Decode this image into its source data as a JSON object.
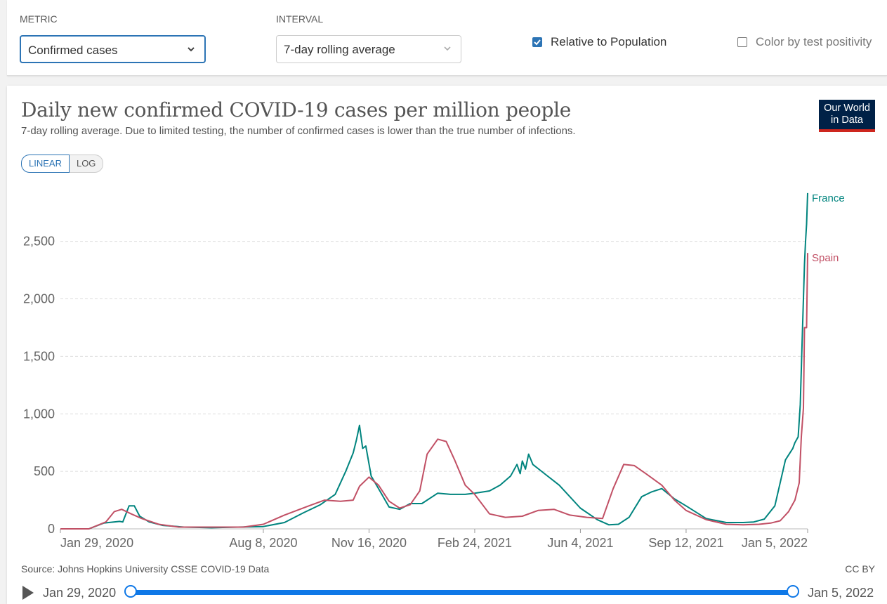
{
  "controls": {
    "metric_label": "METRIC",
    "metric_value": "Confirmed cases",
    "interval_label": "INTERVAL",
    "interval_value": "7-day rolling average",
    "relative_label": "Relative to Population",
    "relative_checked": true,
    "positivity_label": "Color by test positivity",
    "positivity_checked": false
  },
  "title": "Daily new confirmed COVID-19 cases per million people",
  "subtitle": "7-day rolling average. Due to limited testing, the number of confirmed cases is lower than the true number of infections.",
  "logo": {
    "line1": "Our World",
    "line2": "in Data"
  },
  "scale": {
    "linear": "LINEAR",
    "log": "LOG",
    "active": "linear"
  },
  "source": "Source: Johns Hopkins University CSSE COVID-19 Data",
  "license": "CC BY",
  "timeline": {
    "start": "Jan 29, 2020",
    "end": "Jan 5, 2022"
  },
  "colors": {
    "france": "#00847e",
    "spain": "#c15065",
    "accent": "#2c74b5",
    "timeline": "#0f78e7"
  },
  "chart_data": {
    "type": "line",
    "title": "Daily new confirmed COVID-19 cases per million people",
    "xlabel": "",
    "ylabel": "",
    "xlim": [
      "2020-01-29",
      "2022-01-05"
    ],
    "ylim": [
      0,
      2950
    ],
    "y_ticks": [
      0,
      500,
      1000,
      1500,
      2000,
      2500
    ],
    "y_tick_labels": [
      "0",
      "500",
      "1,000",
      "1,500",
      "2,000",
      "2,500"
    ],
    "x_ticks": [
      "2020-01-29",
      "2020-08-08",
      "2020-11-16",
      "2021-02-24",
      "2021-06-04",
      "2021-09-12",
      "2022-01-05"
    ],
    "x_tick_labels": [
      "Jan 29, 2020",
      "Aug 8, 2020",
      "Nov 16, 2020",
      "Feb 24, 2021",
      "Jun 4, 2021",
      "Sep 12, 2021",
      "Jan 5, 2022"
    ],
    "grid": "horizontal dashed",
    "legend": "inline end labels",
    "series": [
      {
        "name": "France",
        "color": "#00847e",
        "x": [
          "2020-01-29",
          "2020-02-25",
          "2020-03-10",
          "2020-03-25",
          "2020-03-28",
          "2020-04-03",
          "2020-04-08",
          "2020-04-13",
          "2020-04-22",
          "2020-05-05",
          "2020-05-25",
          "2020-06-20",
          "2020-07-15",
          "2020-08-08",
          "2020-08-28",
          "2020-09-15",
          "2020-10-01",
          "2020-10-15",
          "2020-10-25",
          "2020-11-01",
          "2020-11-04",
          "2020-11-07",
          "2020-11-10",
          "2020-11-13",
          "2020-11-18",
          "2020-11-25",
          "2020-12-05",
          "2020-12-15",
          "2020-12-25",
          "2021-01-05",
          "2021-01-20",
          "2021-02-01",
          "2021-02-15",
          "2021-02-24",
          "2021-03-10",
          "2021-03-20",
          "2021-03-30",
          "2021-04-05",
          "2021-04-08",
          "2021-04-10",
          "2021-04-13",
          "2021-04-16",
          "2021-04-20",
          "2021-05-01",
          "2021-05-15",
          "2021-06-04",
          "2021-06-20",
          "2021-07-01",
          "2021-07-10",
          "2021-07-20",
          "2021-08-01",
          "2021-08-10",
          "2021-08-20",
          "2021-09-01",
          "2021-09-12",
          "2021-10-01",
          "2021-10-20",
          "2021-11-05",
          "2021-11-15",
          "2021-11-25",
          "2021-12-05",
          "2021-12-15",
          "2021-12-22",
          "2021-12-24",
          "2021-12-27",
          "2021-12-29",
          "2021-12-31",
          "2022-01-02",
          "2022-01-03",
          "2022-01-04",
          "2022-01-05"
        ],
        "y": [
          0,
          0,
          50,
          65,
          60,
          200,
          200,
          110,
          60,
          30,
          15,
          10,
          15,
          20,
          55,
          140,
          210,
          300,
          500,
          660,
          770,
          900,
          700,
          720,
          460,
          350,
          190,
          170,
          220,
          220,
          310,
          300,
          300,
          310,
          330,
          380,
          460,
          560,
          480,
          590,
          520,
          650,
          560,
          480,
          380,
          180,
          80,
          35,
          40,
          100,
          280,
          320,
          350,
          260,
          200,
          90,
          55,
          55,
          60,
          85,
          200,
          600,
          700,
          750,
          800,
          1080,
          1700,
          2300,
          2500,
          2650,
          2920
        ]
      },
      {
        "name": "Spain",
        "color": "#c15065",
        "x": [
          "2020-01-29",
          "2020-02-25",
          "2020-03-12",
          "2020-03-20",
          "2020-03-27",
          "2020-04-05",
          "2020-04-15",
          "2020-05-01",
          "2020-05-20",
          "2020-06-20",
          "2020-07-20",
          "2020-08-08",
          "2020-08-28",
          "2020-09-20",
          "2020-10-05",
          "2020-10-20",
          "2020-11-01",
          "2020-11-07",
          "2020-11-16",
          "2020-11-25",
          "2020-12-05",
          "2020-12-15",
          "2020-12-25",
          "2021-01-03",
          "2021-01-10",
          "2021-01-20",
          "2021-01-28",
          "2021-02-05",
          "2021-02-15",
          "2021-02-24",
          "2021-03-10",
          "2021-03-25",
          "2021-04-10",
          "2021-04-25",
          "2021-05-10",
          "2021-05-25",
          "2021-06-10",
          "2021-06-25",
          "2021-07-05",
          "2021-07-15",
          "2021-07-25",
          "2021-08-05",
          "2021-08-20",
          "2021-09-01",
          "2021-09-12",
          "2021-10-01",
          "2021-10-20",
          "2021-11-05",
          "2021-11-20",
          "2021-12-01",
          "2021-12-10",
          "2021-12-18",
          "2021-12-24",
          "2021-12-28",
          "2021-12-30",
          "2022-01-01",
          "2022-01-02",
          "2022-01-04",
          "2022-01-05"
        ],
        "y": [
          0,
          0,
          60,
          150,
          170,
          130,
          90,
          40,
          15,
          15,
          15,
          40,
          120,
          200,
          250,
          240,
          250,
          370,
          450,
          380,
          240,
          180,
          210,
          330,
          650,
          780,
          760,
          600,
          380,
          300,
          130,
          100,
          110,
          160,
          170,
          120,
          100,
          90,
          350,
          560,
          550,
          480,
          380,
          250,
          160,
          80,
          40,
          35,
          40,
          50,
          70,
          150,
          250,
          400,
          800,
          1050,
          1750,
          1750,
          2400
        ]
      }
    ]
  }
}
